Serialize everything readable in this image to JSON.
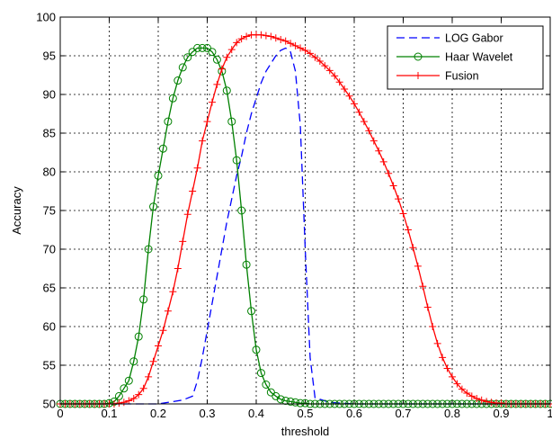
{
  "chart_data": {
    "type": "line",
    "xlabel": "threshold",
    "ylabel": "Accuracy",
    "xlim": [
      0,
      1
    ],
    "ylim": [
      50,
      100
    ],
    "xticks": [
      "0",
      "0.1",
      "0.2",
      "0.3",
      "0.4",
      "0.5",
      "0.6",
      "0.7",
      "0.8",
      "0.9",
      "1"
    ],
    "yticks": [
      "50",
      "55",
      "60",
      "65",
      "70",
      "75",
      "80",
      "85",
      "90",
      "95",
      "100"
    ],
    "grid": true,
    "legend_position": "top-right",
    "series": [
      {
        "name": "LOG Gabor",
        "color": "#0000ff",
        "line_style": "dashed",
        "marker": "none",
        "x": [
          0,
          0.1,
          0.2,
          0.22,
          0.25,
          0.27,
          0.28,
          0.29,
          0.3,
          0.31,
          0.32,
          0.33,
          0.34,
          0.35,
          0.36,
          0.37,
          0.38,
          0.39,
          0.4,
          0.41,
          0.42,
          0.43,
          0.44,
          0.45,
          0.46,
          0.47,
          0.48,
          0.49,
          0.5,
          0.51,
          0.52,
          0.55,
          0.6,
          0.7,
          0.8,
          0.9,
          1.0
        ],
        "y": [
          50,
          50,
          50,
          50.2,
          50.5,
          51,
          53,
          56,
          59.5,
          63,
          66.5,
          70,
          73.5,
          76.5,
          79.5,
          82,
          85,
          87.5,
          89.5,
          91.5,
          93,
          94,
          95,
          95.7,
          96,
          95.5,
          93,
          86,
          70,
          56,
          50.8,
          50.2,
          50,
          50,
          50,
          50,
          50
        ]
      },
      {
        "name": "Haar Wavelet",
        "color": "#008000",
        "line_style": "solid",
        "marker": "circle",
        "x": [
          0,
          0.01,
          0.02,
          0.03,
          0.04,
          0.05,
          0.06,
          0.07,
          0.08,
          0.09,
          0.1,
          0.11,
          0.12,
          0.13,
          0.14,
          0.15,
          0.16,
          0.17,
          0.18,
          0.19,
          0.2,
          0.21,
          0.22,
          0.23,
          0.24,
          0.25,
          0.26,
          0.27,
          0.28,
          0.29,
          0.3,
          0.31,
          0.32,
          0.33,
          0.34,
          0.35,
          0.36,
          0.37,
          0.38,
          0.39,
          0.4,
          0.41,
          0.42,
          0.43,
          0.44,
          0.45,
          0.46,
          0.47,
          0.48,
          0.49,
          0.5,
          0.51,
          0.52,
          0.53,
          0.54,
          0.55,
          0.56,
          0.57,
          0.58,
          0.59,
          0.6,
          0.61,
          0.62,
          0.63,
          0.64,
          0.65,
          0.66,
          0.67,
          0.68,
          0.69,
          0.7,
          0.71,
          0.72,
          0.73,
          0.74,
          0.75,
          0.76,
          0.77,
          0.78,
          0.79,
          0.8,
          0.81,
          0.82,
          0.83,
          0.84,
          0.85,
          0.86,
          0.87,
          0.88,
          0.89,
          0.9,
          0.91,
          0.92,
          0.93,
          0.94,
          0.95,
          0.96,
          0.97,
          0.98,
          0.99,
          1.0
        ],
        "y": [
          50,
          50,
          50,
          50,
          50,
          50,
          50,
          50,
          50,
          50,
          50.1,
          50.3,
          51,
          52,
          53,
          55.5,
          58.7,
          63.5,
          70,
          75.5,
          79.5,
          83,
          86.5,
          89.5,
          91.8,
          93.5,
          94.8,
          95.5,
          96,
          96,
          96,
          95.5,
          94.5,
          93,
          90.5,
          86.5,
          81.5,
          75,
          68,
          62,
          57,
          54,
          52.5,
          51.5,
          51,
          50.6,
          50.4,
          50.3,
          50.2,
          50.1,
          50.1,
          50,
          50,
          50,
          50,
          50,
          50,
          50,
          50,
          50,
          50,
          50,
          50,
          50,
          50,
          50,
          50,
          50,
          50,
          50,
          50,
          50,
          50,
          50,
          50,
          50,
          50,
          50,
          50,
          50,
          50,
          50,
          50,
          50,
          50,
          50,
          50,
          50,
          50,
          50,
          50,
          50,
          50,
          50,
          50,
          50,
          50,
          50,
          50,
          50,
          50
        ]
      },
      {
        "name": "Fusion",
        "color": "#ff0000",
        "line_style": "solid",
        "marker": "plus",
        "x": [
          0,
          0.01,
          0.02,
          0.03,
          0.04,
          0.05,
          0.06,
          0.07,
          0.08,
          0.09,
          0.1,
          0.11,
          0.12,
          0.13,
          0.14,
          0.15,
          0.16,
          0.17,
          0.18,
          0.19,
          0.2,
          0.21,
          0.22,
          0.23,
          0.24,
          0.25,
          0.26,
          0.27,
          0.28,
          0.29,
          0.3,
          0.31,
          0.32,
          0.33,
          0.34,
          0.35,
          0.36,
          0.37,
          0.38,
          0.39,
          0.4,
          0.41,
          0.42,
          0.43,
          0.44,
          0.45,
          0.46,
          0.47,
          0.48,
          0.49,
          0.5,
          0.51,
          0.52,
          0.53,
          0.54,
          0.55,
          0.56,
          0.57,
          0.58,
          0.59,
          0.6,
          0.61,
          0.62,
          0.63,
          0.64,
          0.65,
          0.66,
          0.67,
          0.68,
          0.69,
          0.7,
          0.71,
          0.72,
          0.73,
          0.74,
          0.75,
          0.76,
          0.77,
          0.78,
          0.79,
          0.8,
          0.81,
          0.82,
          0.83,
          0.84,
          0.85,
          0.86,
          0.87,
          0.88,
          0.89,
          0.9,
          0.91,
          0.92,
          0.93,
          0.94,
          0.95,
          0.96,
          0.97,
          0.98,
          0.99,
          1.0
        ],
        "y": [
          50,
          50,
          50,
          50,
          50,
          50,
          50,
          50,
          50,
          50,
          50,
          50,
          50.1,
          50.2,
          50.4,
          50.7,
          51.2,
          52,
          53.5,
          55.5,
          57.5,
          59.5,
          62,
          64.5,
          67.5,
          71,
          74.5,
          77.5,
          80.5,
          84,
          86.5,
          89,
          91.3,
          93.3,
          94.8,
          95.8,
          96.7,
          97.2,
          97.5,
          97.7,
          97.7,
          97.7,
          97.6,
          97.5,
          97.3,
          97.1,
          96.9,
          96.6,
          96.3,
          96,
          95.7,
          95.3,
          94.8,
          94.3,
          93.7,
          93.1,
          92.4,
          91.6,
          90.7,
          89.8,
          88.8,
          87.7,
          86.5,
          85.3,
          84,
          82.7,
          81.3,
          79.8,
          78.2,
          76.5,
          74.6,
          72.5,
          70.2,
          67.8,
          65.2,
          62.5,
          60,
          57.8,
          56,
          54.6,
          53.5,
          52.6,
          51.9,
          51.4,
          51,
          50.7,
          50.5,
          50.3,
          50.2,
          50.1,
          50.1,
          50,
          50,
          50,
          50,
          50,
          50,
          50,
          50,
          50,
          50
        ]
      }
    ]
  }
}
